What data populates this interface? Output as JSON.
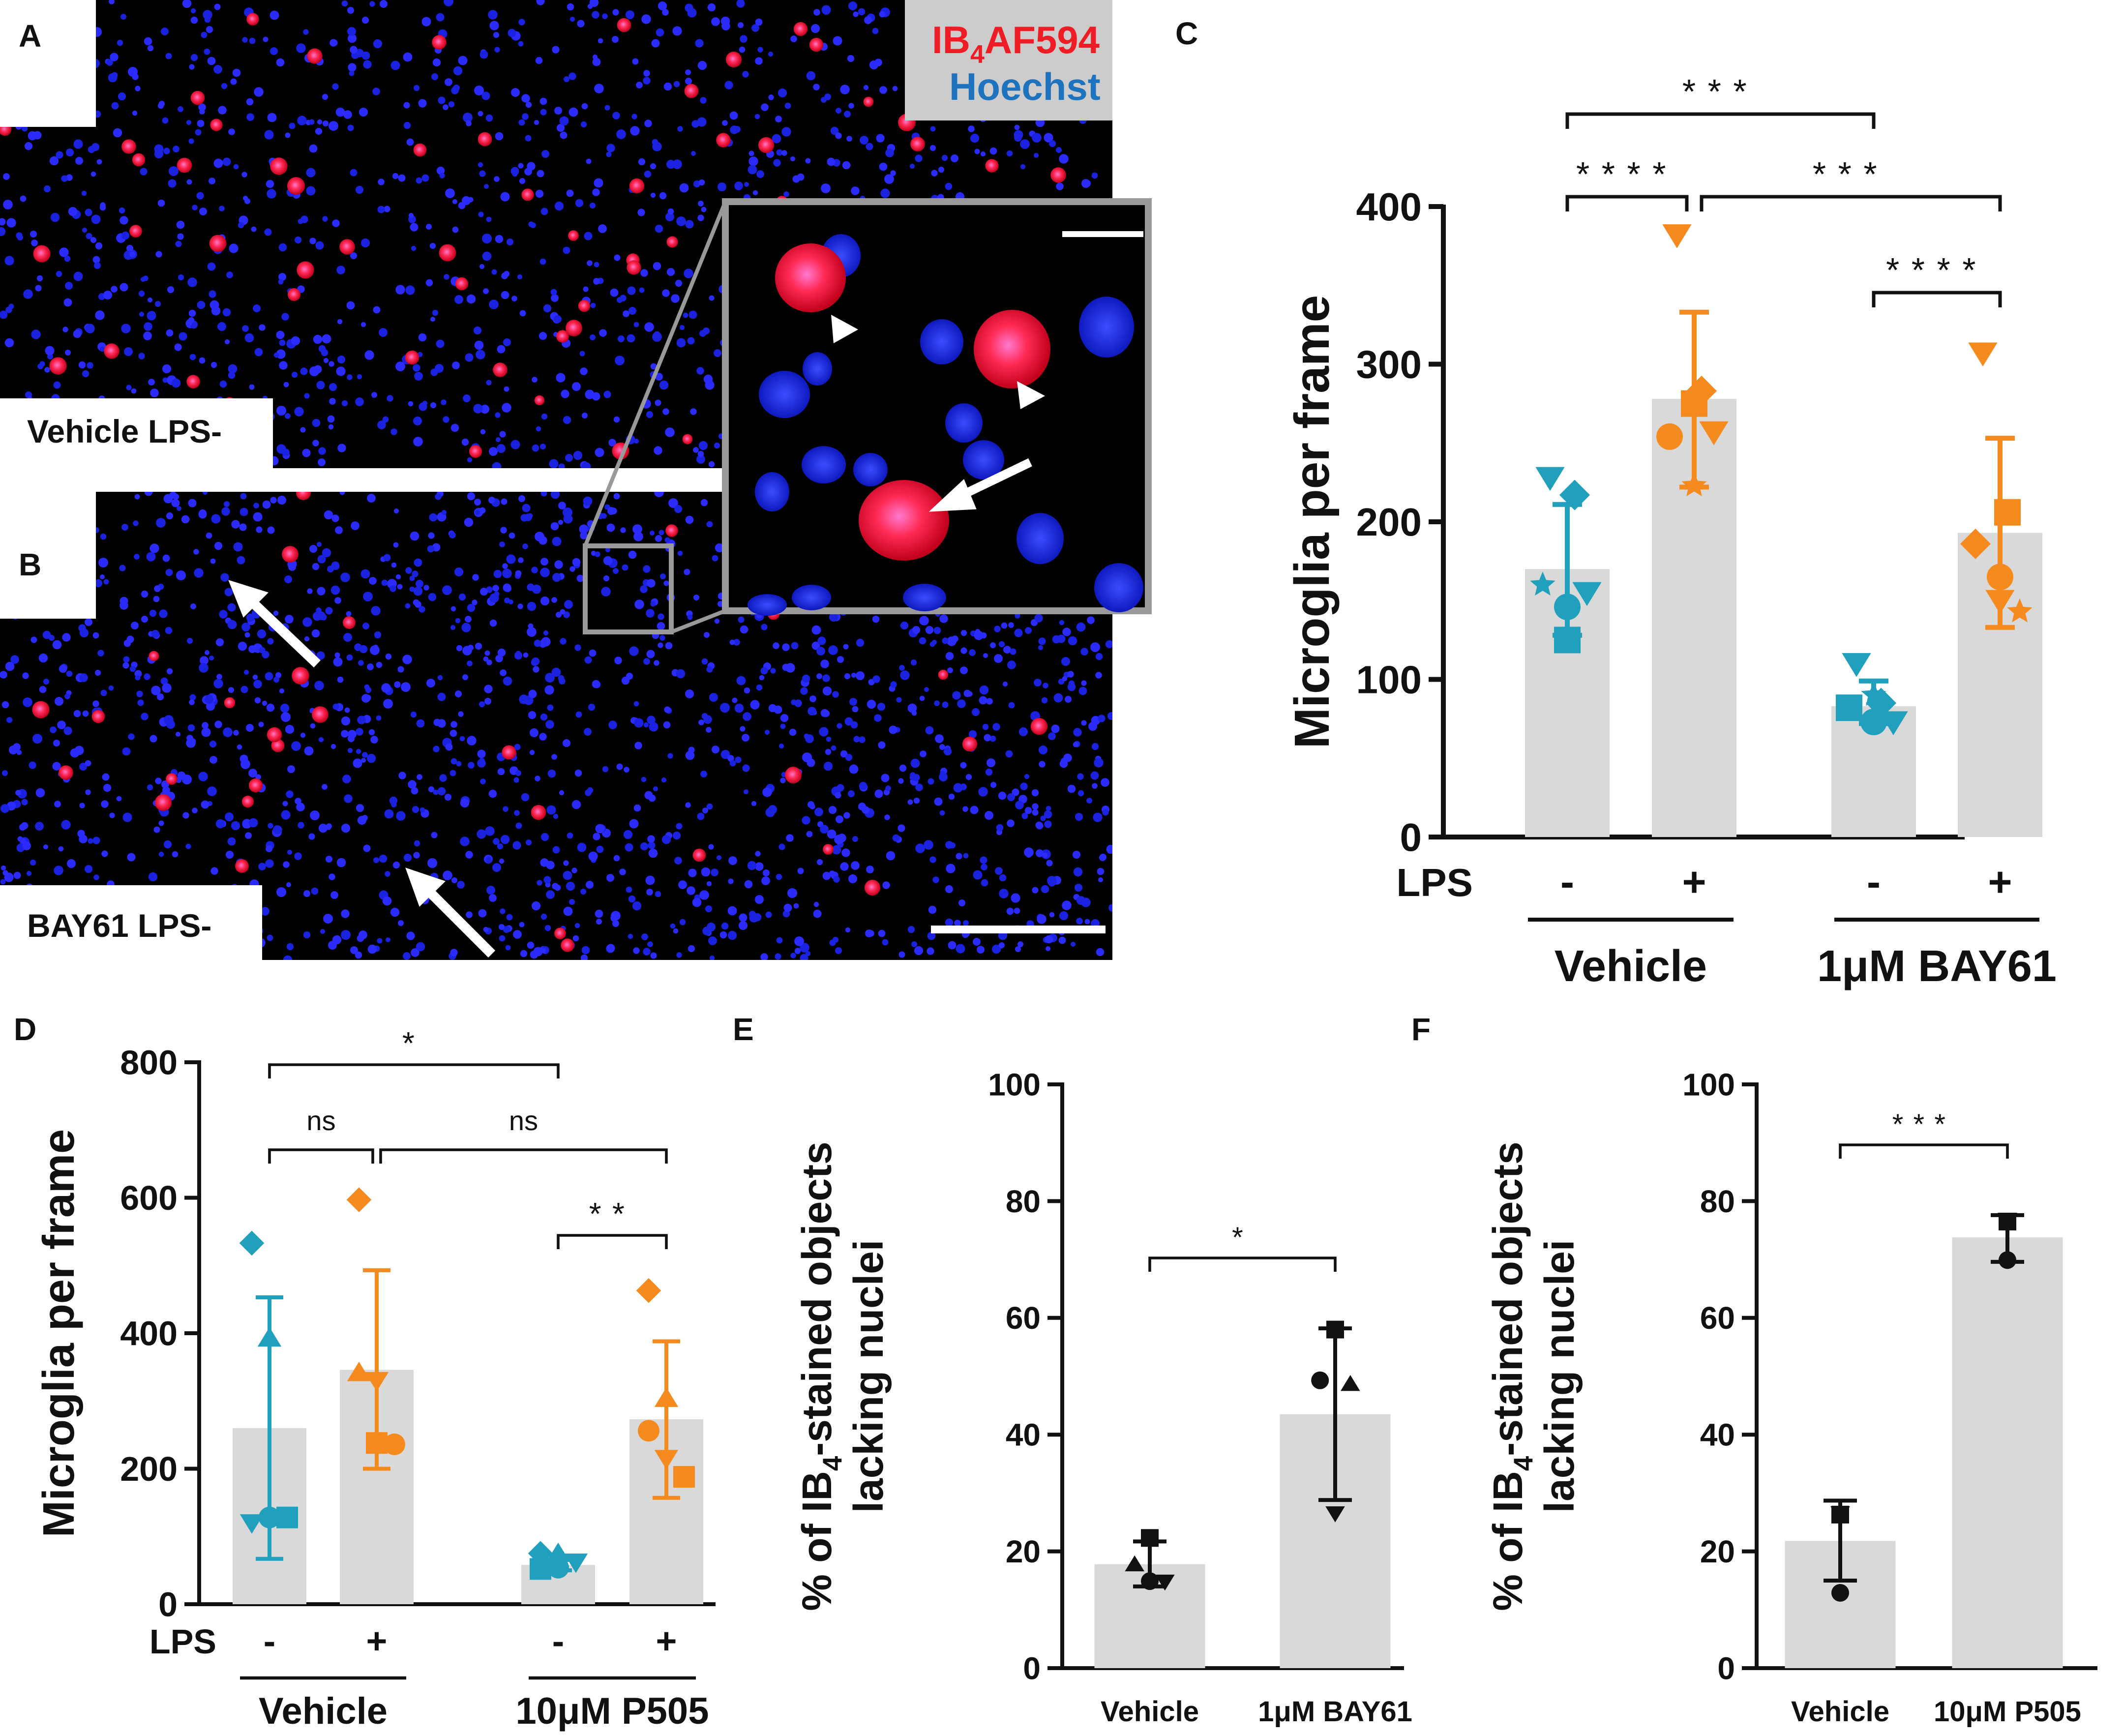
{
  "colors": {
    "vehicle_teal": "#20a0bd",
    "lps_orange": "#f58a1e",
    "bar_gray": "#d9d9d9",
    "stain_red": "#ee1c25",
    "stain_blue": "#1e73be",
    "legend_bg": "#cccccc"
  },
  "micrographs": {
    "panel_a": {
      "letter": "A",
      "label": "Vehicle LPS-"
    },
    "panel_b": {
      "letter": "B",
      "label": "BAY61 LPS-"
    },
    "legend": {
      "stain1_main": "IB",
      "stain1_sub": "4",
      "stain1_rest": "AF594",
      "stain2": "Hoechst"
    },
    "icons": [
      "arrow-icon",
      "arrowhead-icon",
      "scale-bar"
    ]
  },
  "chart_data": [
    {
      "panel": "C",
      "type": "bar",
      "ylabel": "Microglia per frame",
      "ylim": [
        0,
        400
      ],
      "yticks": [
        "0",
        "100",
        "200",
        "300",
        "400"
      ],
      "lps_label": "LPS",
      "categories": [
        "-",
        "+",
        "-",
        "+"
      ],
      "groups": [
        "Vehicle",
        "1μM BAY61"
      ],
      "series": [
        {
          "name": "Vehicle LPS-",
          "mean": 170,
          "sd_low": 128,
          "sd_high": 211,
          "color": "teal",
          "points": [
            {
              "marker": "triangle-down",
              "y": 228
            },
            {
              "marker": "diamond",
              "y": 217
            },
            {
              "marker": "star",
              "y": 160
            },
            {
              "marker": "circle",
              "y": 146
            },
            {
              "marker": "triangle-down",
              "y": 155
            },
            {
              "marker": "square",
              "y": 125
            }
          ]
        },
        {
          "name": "Vehicle LPS+",
          "mean": 278,
          "sd_low": 222,
          "sd_high": 333,
          "color": "orange",
          "points": [
            {
              "marker": "triangle-down",
              "y": 382
            },
            {
              "marker": "diamond",
              "y": 283
            },
            {
              "marker": "circle",
              "y": 254
            },
            {
              "marker": "square",
              "y": 275
            },
            {
              "marker": "triangle-down",
              "y": 257
            },
            {
              "marker": "star",
              "y": 223
            }
          ]
        },
        {
          "name": "BAY61 LPS-",
          "mean": 83,
          "sd_low": 72,
          "sd_high": 99,
          "color": "teal",
          "points": [
            {
              "marker": "triangle-down",
              "y": 110
            },
            {
              "marker": "diamond",
              "y": 85
            },
            {
              "marker": "square",
              "y": 82
            },
            {
              "marker": "star",
              "y": 90
            },
            {
              "marker": "triangle-down",
              "y": 73
            },
            {
              "marker": "circle",
              "y": 73
            }
          ]
        },
        {
          "name": "BAY61 LPS+",
          "mean": 193,
          "sd_low": 133,
          "sd_high": 253,
          "color": "orange",
          "points": [
            {
              "marker": "triangle-down",
              "y": 307
            },
            {
              "marker": "square",
              "y": 206
            },
            {
              "marker": "diamond",
              "y": 186
            },
            {
              "marker": "circle",
              "y": 165
            },
            {
              "marker": "star",
              "y": 143
            },
            {
              "marker": "triangle-down",
              "y": 150
            }
          ]
        }
      ],
      "significance": [
        {
          "from": 0,
          "to": 2,
          "label": "***"
        },
        {
          "from": 0,
          "to": 1,
          "label": "****"
        },
        {
          "from": 1,
          "to": 3,
          "label": "***"
        },
        {
          "from": 2,
          "to": 3,
          "label": "****"
        }
      ]
    },
    {
      "panel": "D",
      "type": "bar",
      "ylabel": "Microglia per frame",
      "ylim": [
        0,
        800
      ],
      "yticks": [
        "0",
        "200",
        "400",
        "600",
        "800"
      ],
      "lps_label": "LPS",
      "categories": [
        "-",
        "+",
        "-",
        "+"
      ],
      "groups": [
        "Vehicle",
        "10μM P505"
      ],
      "series": [
        {
          "name": "Vehicle LPS-",
          "mean": 260,
          "sd_low": 67,
          "sd_high": 453,
          "color": "teal",
          "points": [
            {
              "marker": "diamond",
              "y": 533
            },
            {
              "marker": "triangle-up",
              "y": 393
            },
            {
              "marker": "triangle-down",
              "y": 120
            },
            {
              "marker": "circle",
              "y": 128
            },
            {
              "marker": "square",
              "y": 128
            }
          ]
        },
        {
          "name": "Vehicle LPS+",
          "mean": 346,
          "sd_low": 200,
          "sd_high": 493,
          "color": "orange",
          "points": [
            {
              "marker": "diamond",
              "y": 597
            },
            {
              "marker": "triangle-down",
              "y": 330
            },
            {
              "marker": "triangle-up",
              "y": 342
            },
            {
              "marker": "square",
              "y": 238
            },
            {
              "marker": "circle",
              "y": 236
            }
          ]
        },
        {
          "name": "P505 LPS-",
          "mean": 58,
          "sd_low": 50,
          "sd_high": 66,
          "color": "teal",
          "points": [
            {
              "marker": "diamond",
              "y": 75
            },
            {
              "marker": "triangle-up",
              "y": 75
            },
            {
              "marker": "square",
              "y": 52
            },
            {
              "marker": "circle",
              "y": 54
            },
            {
              "marker": "triangle-down",
              "y": 62
            }
          ]
        },
        {
          "name": "P505 LPS+",
          "mean": 273,
          "sd_low": 157,
          "sd_high": 388,
          "color": "orange",
          "points": [
            {
              "marker": "diamond",
              "y": 463
            },
            {
              "marker": "triangle-up",
              "y": 304
            },
            {
              "marker": "circle",
              "y": 256
            },
            {
              "marker": "triangle-down",
              "y": 215
            },
            {
              "marker": "square",
              "y": 188
            }
          ]
        }
      ],
      "significance": [
        {
          "from": 0,
          "to": 2,
          "label": "*"
        },
        {
          "from": 0,
          "to": 1,
          "label": "ns"
        },
        {
          "from": 1,
          "to": 3,
          "label": "ns"
        },
        {
          "from": 2,
          "to": 3,
          "label": "**"
        }
      ]
    },
    {
      "panel": "E",
      "type": "bar",
      "ylabel_line1": "% of IB",
      "ylabel_sub": "4",
      "ylabel_line1_rest": "-stained objects",
      "ylabel_line2": "lacking nuclei",
      "ylim": [
        0,
        100
      ],
      "yticks": [
        "0",
        "20",
        "40",
        "60",
        "80",
        "100"
      ],
      "categories": [
        "Vehicle",
        "1μM BAY61"
      ],
      "series": [
        {
          "name": "Vehicle",
          "mean": 17.8,
          "sd_low": 14,
          "sd_high": 21.7,
          "points": [
            {
              "marker": "square",
              "y": 22.3
            },
            {
              "marker": "triangle-up",
              "y": 17.8
            },
            {
              "marker": "triangle-down",
              "y": 14.8
            },
            {
              "marker": "circle",
              "y": 14.9
            }
          ]
        },
        {
          "name": "1μM BAY61",
          "mean": 43.5,
          "sd_low": 28.8,
          "sd_high": 58.2,
          "points": [
            {
              "marker": "square",
              "y": 58
            },
            {
              "marker": "circle",
              "y": 49.3
            },
            {
              "marker": "triangle-up",
              "y": 48.7
            },
            {
              "marker": "triangle-down",
              "y": 26.5
            }
          ]
        }
      ],
      "significance": [
        {
          "from": 0,
          "to": 1,
          "label": "*"
        }
      ]
    },
    {
      "panel": "F",
      "type": "bar",
      "ylabel_line1": "% of IB",
      "ylabel_sub": "4",
      "ylabel_line1_rest": "-stained objects",
      "ylabel_line2": "lacking nuclei",
      "ylim": [
        0,
        100
      ],
      "yticks": [
        "0",
        "20",
        "40",
        "60",
        "80",
        "100"
      ],
      "categories": [
        "Vehicle",
        "10μM P505"
      ],
      "series": [
        {
          "name": "Vehicle",
          "mean": 21.8,
          "sd_low": 15,
          "sd_high": 28.7,
          "points": [
            {
              "marker": "square",
              "y": 26.3
            },
            {
              "marker": "triangle-down",
              "y": 26.5
            },
            {
              "marker": "circle",
              "y": 12.9
            }
          ]
        },
        {
          "name": "10μM P505",
          "mean": 73.8,
          "sd_low": 69.6,
          "sd_high": 77.6,
          "points": [
            {
              "marker": "square",
              "y": 76.5
            },
            {
              "marker": "triangle-down",
              "y": 76.8
            },
            {
              "marker": "circle",
              "y": 69.9
            }
          ]
        }
      ],
      "significance": [
        {
          "from": 0,
          "to": 1,
          "label": "***"
        }
      ]
    }
  ]
}
